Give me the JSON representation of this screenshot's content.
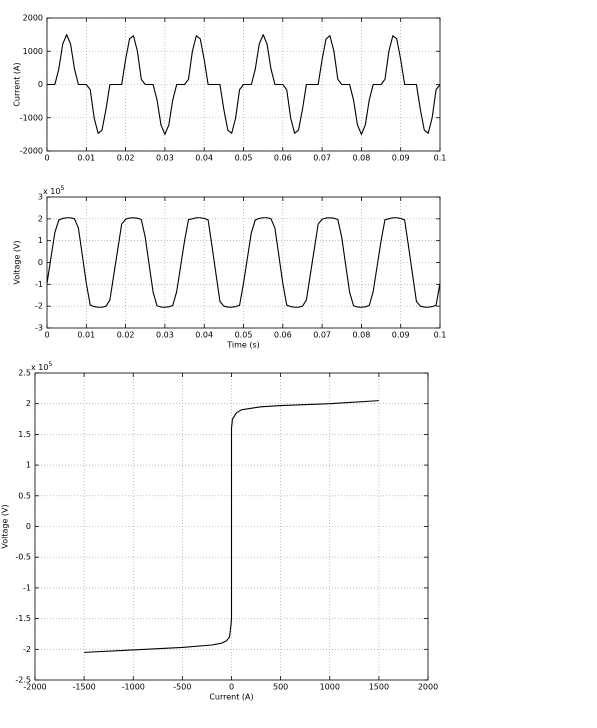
{
  "chart_data": [
    {
      "type": "line",
      "y_label": "Current (A)",
      "color": "#000000",
      "grid": true,
      "xlim": [
        0,
        0.1
      ],
      "xticks": [
        0,
        0.01,
        0.02,
        0.03,
        0.04,
        0.05,
        0.06,
        0.07,
        0.08,
        0.09,
        0.1
      ],
      "ylim": [
        -2000,
        2000
      ],
      "yticks": [
        -2000,
        -1000,
        0,
        1000,
        2000
      ],
      "x": [
        0,
        0.001,
        0.002,
        0.003,
        0.004,
        0.005,
        0.006,
        0.007,
        0.008,
        0.009,
        0.01,
        0.011,
        0.012,
        0.013,
        0.014,
        0.015,
        0.016,
        0.017,
        0.018,
        0.019,
        0.02,
        0.021,
        0.022,
        0.023,
        0.024,
        0.025,
        0.026,
        0.027,
        0.028,
        0.029,
        0.03,
        0.031,
        0.032,
        0.033,
        0.034,
        0.035,
        0.036,
        0.037,
        0.038,
        0.039,
        0.04,
        0.041,
        0.042,
        0.043,
        0.044,
        0.045,
        0.046,
        0.047,
        0.048,
        0.049,
        0.05,
        0.051,
        0.052,
        0.053,
        0.054,
        0.055,
        0.056,
        0.057,
        0.058,
        0.059,
        0.06,
        0.061,
        0.062,
        0.063,
        0.064,
        0.065,
        0.066,
        0.067,
        0.068,
        0.069,
        0.07,
        0.071,
        0.072,
        0.073,
        0.074,
        0.075,
        0.076,
        0.077,
        0.078,
        0.079,
        0.08,
        0.081,
        0.082,
        0.083,
        0.084,
        0.085,
        0.086,
        0.087,
        0.088,
        0.089,
        0.09,
        0.091,
        0.092,
        0.093,
        0.094,
        0.095,
        0.096,
        0.097,
        0.098,
        0.099,
        0.1
      ],
      "values": [
        0,
        0,
        0,
        464,
        1214,
        1500,
        1214,
        464,
        0,
        0,
        0,
        -157,
        -1004,
        -1467,
        -1370,
        -750,
        0,
        0,
        0,
        0,
        750,
        1370,
        1467,
        1004,
        157,
        0,
        0,
        0,
        -464,
        -1214,
        -1500,
        -1214,
        -464,
        0,
        0,
        0,
        157,
        1004,
        1467,
        1370,
        750,
        0,
        0,
        0,
        0,
        -750,
        -1370,
        -1467,
        -1004,
        -157,
        0,
        0,
        0,
        464,
        1214,
        1500,
        1214,
        464,
        0,
        0,
        0,
        -157,
        -1004,
        -1467,
        -1370,
        -750,
        0,
        0,
        0,
        0,
        750,
        1370,
        1467,
        1004,
        157,
        0,
        0,
        0,
        -464,
        -1214,
        -1500,
        -1214,
        -464,
        0,
        0,
        0,
        157,
        1004,
        1467,
        1370,
        750,
        0,
        0,
        0,
        0,
        -750,
        -1370,
        -1467,
        -1004,
        -157,
        0
      ]
    },
    {
      "type": "line",
      "x_label": "Time (s)",
      "y_label": "Voltage (V)",
      "y_multiplier_base": "x 10",
      "y_multiplier_exponent": "5",
      "color": "#000000",
      "grid": true,
      "xlim": [
        0,
        0.1
      ],
      "xticks": [
        0,
        0.01,
        0.02,
        0.03,
        0.04,
        0.05,
        0.06,
        0.07,
        0.08,
        0.09,
        0.1
      ],
      "ylim": [
        -3,
        3
      ],
      "yticks": [
        -3,
        -2,
        -1,
        0,
        1,
        2,
        3
      ],
      "x": [
        0,
        0.001,
        0.002,
        0.003,
        0.004,
        0.005,
        0.006,
        0.007,
        0.008,
        0.009,
        0.01,
        0.011,
        0.012,
        0.013,
        0.014,
        0.015,
        0.016,
        0.017,
        0.018,
        0.019,
        0.02,
        0.021,
        0.022,
        0.023,
        0.024,
        0.025,
        0.026,
        0.027,
        0.028,
        0.029,
        0.03,
        0.031,
        0.032,
        0.033,
        0.034,
        0.035,
        0.036,
        0.037,
        0.038,
        0.039,
        0.04,
        0.041,
        0.042,
        0.043,
        0.044,
        0.045,
        0.046,
        0.047,
        0.048,
        0.049,
        0.05,
        0.051,
        0.052,
        0.053,
        0.054,
        0.055,
        0.056,
        0.057,
        0.058,
        0.059,
        0.06,
        0.061,
        0.062,
        0.063,
        0.064,
        0.065,
        0.066,
        0.067,
        0.068,
        0.069,
        0.07,
        0.071,
        0.072,
        0.073,
        0.074,
        0.075,
        0.076,
        0.077,
        0.078,
        0.079,
        0.08,
        0.081,
        0.082,
        0.083,
        0.084,
        0.085,
        0.086,
        0.087,
        0.088,
        0.089,
        0.09,
        0.091,
        0.092,
        0.093,
        0.094,
        0.095,
        0.096,
        0.097,
        0.098,
        0.099,
        0.1
      ],
      "values": [
        -0.95,
        0.21,
        1.37,
        1.95,
        2.02,
        2.05,
        2.05,
        2.0,
        1.57,
        0.31,
        -0.95,
        -1.95,
        -2.02,
        -2.05,
        -2.05,
        -2.0,
        -1.72,
        -0.56,
        0.6,
        1.76,
        1.98,
        2.04,
        2.05,
        2.03,
        1.97,
        1.15,
        -0.11,
        -1.36,
        -1.98,
        -2.04,
        -2.05,
        -2.03,
        -1.97,
        -1.33,
        -0.17,
        0.99,
        1.96,
        2.0,
        2.05,
        2.05,
        2.02,
        1.95,
        0.73,
        -0.53,
        -1.78,
        -2.0,
        -2.04,
        -2.05,
        -2.02,
        -1.96,
        -0.95,
        0.21,
        1.37,
        1.95,
        2.02,
        2.05,
        2.05,
        2.0,
        1.57,
        0.31,
        -0.95,
        -1.95,
        -2.02,
        -2.05,
        -2.05,
        -2.0,
        -1.72,
        -0.56,
        0.6,
        1.76,
        1.98,
        2.04,
        2.05,
        2.03,
        1.97,
        1.15,
        -0.11,
        -1.36,
        -1.98,
        -2.04,
        -2.05,
        -2.03,
        -1.97,
        -1.33,
        -0.17,
        0.99,
        1.96,
        2.0,
        2.05,
        2.05,
        2.02,
        1.95,
        0.73,
        -0.53,
        -1.78,
        -2.0,
        -2.04,
        -2.05,
        -2.02,
        -1.96,
        -0.95
      ]
    },
    {
      "type": "line",
      "x_label": "Current (A)",
      "y_label": "Voltage (V)",
      "y_multiplier_base": "x 10",
      "y_multiplier_exponent": "5",
      "color": "#000000",
      "grid": true,
      "xlim": [
        -2000,
        2000
      ],
      "xticks": [
        -2000,
        -1500,
        -1000,
        -500,
        0,
        500,
        1000,
        1500,
        2000
      ],
      "ylim": [
        -2.5,
        2.5
      ],
      "yticks": [
        -2.5,
        -2,
        -1.5,
        -1,
        -0.5,
        0,
        0.5,
        1,
        1.5,
        2,
        2.5
      ],
      "x": [
        -1500,
        -1000,
        -500,
        -200,
        -100,
        -50,
        -20,
        -5,
        0,
        0,
        10,
        50,
        100,
        300,
        500,
        1000,
        1500
      ],
      "values": [
        -2.05,
        -2.01,
        -1.97,
        -1.93,
        -1.9,
        -1.86,
        -1.8,
        -1.6,
        -1.5,
        1.6,
        1.75,
        1.85,
        1.9,
        1.95,
        1.97,
        2.0,
        2.05
      ]
    }
  ]
}
